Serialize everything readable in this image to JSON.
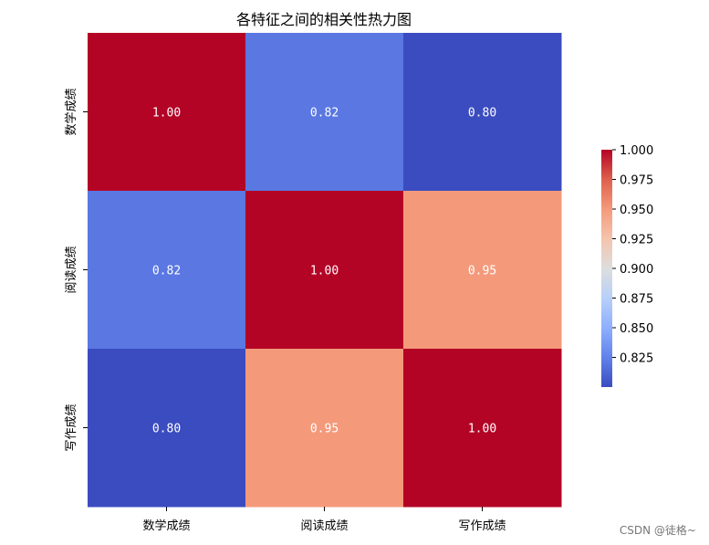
{
  "chart_data": {
    "type": "heatmap",
    "title": "各特征之间的相关性热力图",
    "x_labels": [
      "数学成绩",
      "阅读成绩",
      "写作成绩"
    ],
    "y_labels": [
      "数学成绩",
      "阅读成绩",
      "写作成绩"
    ],
    "values": [
      [
        1.0,
        0.82,
        0.8
      ],
      [
        0.82,
        1.0,
        0.95
      ],
      [
        0.8,
        0.95,
        1.0
      ]
    ],
    "annotations": [
      [
        "1.00",
        "0.82",
        "0.80"
      ],
      [
        "0.82",
        "1.00",
        "0.95"
      ],
      [
        "0.80",
        "0.95",
        "1.00"
      ]
    ],
    "colormap": "coolwarm",
    "vmin": 0.8,
    "vmax": 1.0,
    "colorbar_ticks": [
      "1.000",
      "0.975",
      "0.950",
      "0.925",
      "0.900",
      "0.875",
      "0.850",
      "0.825"
    ],
    "colorbar_tick_values": [
      1.0,
      0.975,
      0.95,
      0.925,
      0.9,
      0.875,
      0.85,
      0.825
    ]
  },
  "watermark": "CSDN @徒格~"
}
